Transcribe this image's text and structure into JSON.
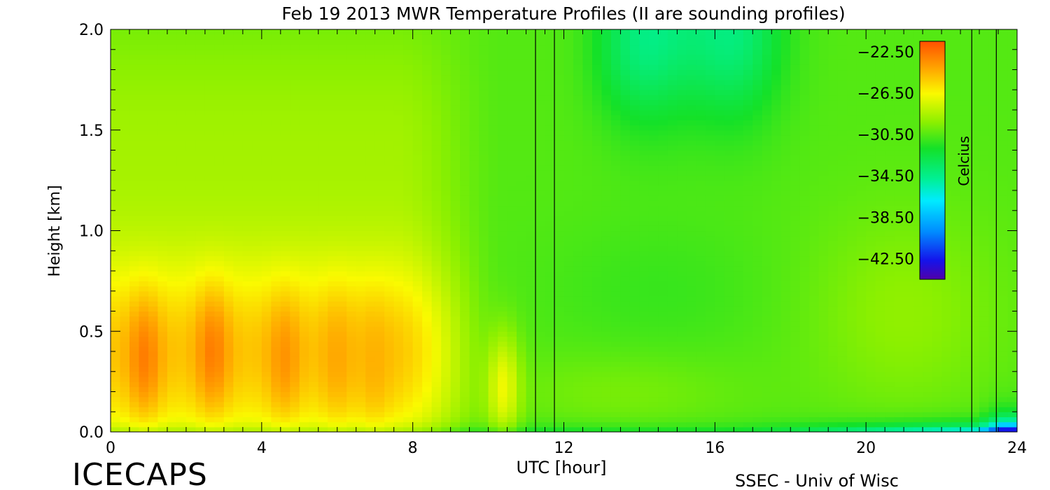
{
  "chart_data": {
    "type": "heatmap",
    "title": "Feb 19 2013 MWR Temperature Profiles (II are sounding profiles)",
    "xlabel": "UTC [hour]",
    "ylabel": "Height [km]",
    "xlim": [
      0,
      24
    ],
    "ylim": [
      0,
      2.0
    ],
    "x_ticks": [
      "0",
      "4",
      "8",
      "12",
      "16",
      "20",
      "24"
    ],
    "y_ticks": [
      "0.0",
      "0.5",
      "1.0",
      "1.5",
      "2.0"
    ],
    "colorbar": {
      "label": "Celcius",
      "range": [
        -44.5,
        -21.5
      ],
      "tick_labels": [
        "-22.50",
        "-26.50",
        "-30.50",
        "-34.50",
        "-38.50",
        "-42.50"
      ]
    },
    "sounding_times_utc": [
      11.25,
      11.75,
      22.8,
      23.45
    ],
    "warm_cores": [
      {
        "x": 0.9,
        "y": 0.37,
        "max_temp": -22.5
      },
      {
        "x": 2.7,
        "y": 0.4,
        "max_temp": -22.5
      },
      {
        "x": 4.6,
        "y": 0.37,
        "max_temp": -23.3
      },
      {
        "x": 6.0,
        "y": 0.37,
        "max_temp": -24.0
      },
      {
        "x": 7.0,
        "y": 0.34,
        "max_temp": -24.3
      },
      {
        "x": 10.4,
        "y": 0.22,
        "max_temp": -26.2
      }
    ],
    "cold_features": [
      {
        "x": 14.3,
        "y": 2.0,
        "min_temp": -34.0
      },
      {
        "x": 16.5,
        "y": 2.0,
        "min_temp": -34.0
      },
      {
        "x": 23.2,
        "y": 0.02,
        "min_temp": -40.0
      }
    ]
  },
  "footer": {
    "left_brand": "ICECAPS",
    "right_brand": "SSEC - Univ of Wisc"
  }
}
